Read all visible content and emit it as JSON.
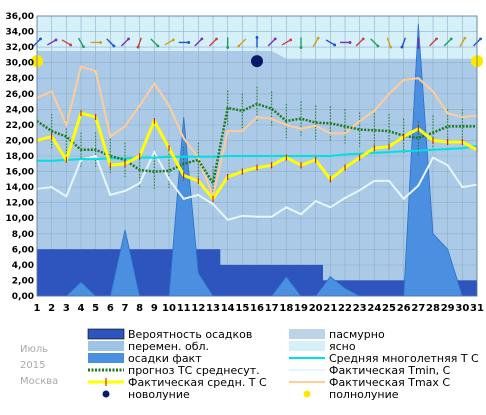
{
  "chart_data": {
    "type": "line",
    "x": [
      1,
      2,
      3,
      4,
      5,
      6,
      7,
      8,
      9,
      10,
      11,
      12,
      13,
      14,
      15,
      16,
      17,
      18,
      19,
      20,
      21,
      22,
      23,
      24,
      25,
      26,
      27,
      28,
      29,
      30,
      31
    ],
    "ylim": [
      0,
      36
    ],
    "yticks": [
      "0,00",
      "2,00",
      "4,00",
      "6,00",
      "8,00",
      "10,00",
      "12,00",
      "14,00",
      "16,00",
      "18,00",
      "20,00",
      "22,00",
      "24,00",
      "26,00",
      "28,00",
      "30,00",
      "32,00",
      "34,00",
      "36,00"
    ],
    "xticks": [
      "1",
      "2",
      "3",
      "4",
      "5",
      "6",
      "7",
      "8",
      "9",
      "10",
      "11",
      "12",
      "13",
      "14",
      "15",
      "16",
      "17",
      "18",
      "19",
      "20",
      "21",
      "22",
      "23",
      "24",
      "25",
      "26",
      "27",
      "28",
      "29",
      "30",
      "31"
    ],
    "colors": {
      "clear_sky": "#d6f0fa",
      "overcast": "#bcd3e8",
      "variable": "#9dc3e6",
      "precip_prob": "#2d55bd",
      "precip_fact": "#4a8fe0",
      "forecast": "#1a7a1a",
      "mean_norm": "#00e0e0",
      "fact_mean": "#ffff00",
      "tmin": "#e6f6ff",
      "tmax": "#ffcc99"
    },
    "precip_probability": [
      6,
      6,
      6,
      6,
      6,
      6,
      6,
      6,
      6,
      6,
      6,
      6,
      6,
      4,
      4,
      4,
      4,
      4,
      4,
      4,
      2,
      2,
      2,
      2,
      2,
      2,
      2,
      2,
      2,
      2,
      2
    ],
    "precip_fact": [
      0,
      0,
      0,
      1.8,
      0,
      0,
      8.5,
      0,
      0,
      0,
      23,
      3,
      0,
      0,
      0,
      0,
      0,
      2.5,
      0,
      0,
      2.5,
      1,
      0,
      0,
      0,
      0,
      35,
      8,
      6,
      0,
      0
    ],
    "forecast_mean": [
      22.5,
      21.2,
      20.5,
      18.8,
      18.8,
      18,
      17.5,
      16.2,
      16,
      16.1,
      17,
      17.5,
      14.5,
      24.2,
      23.8,
      24.7,
      24.1,
      22.5,
      22.8,
      22.3,
      22.2,
      21.8,
      21.4,
      21.3,
      21.2,
      20.6,
      20.3,
      21,
      21.8,
      21.8,
      21.8
    ],
    "mean_norm": [
      17.4,
      17.4,
      17.5,
      17.6,
      17.6,
      17.7,
      17.7,
      17.8,
      17.8,
      17.9,
      17.9,
      17.9,
      17.9,
      18,
      18,
      18,
      18,
      18,
      18,
      18,
      18,
      18.2,
      18.3,
      18.4,
      18.5,
      18.6,
      18.7,
      18.8,
      18.9,
      19,
      19.3
    ],
    "fact_mean": [
      20,
      20.5,
      17.5,
      23.5,
      23,
      16.8,
      17,
      18,
      22.5,
      19,
      15.5,
      14.8,
      12.5,
      15.3,
      16,
      16.5,
      16.8,
      17.8,
      16.8,
      17.5,
      15,
      16.5,
      17.8,
      19,
      19.2,
      20.5,
      21.5,
      20,
      19.8,
      19.8,
      18.8
    ],
    "fact_tmin": [
      13.8,
      14,
      12.8,
      17.5,
      18,
      13,
      13.5,
      14.5,
      18.5,
      15,
      12.5,
      13,
      11.8,
      9.8,
      10.3,
      10.2,
      10.2,
      11.4,
      10.5,
      12.2,
      11.4,
      12.6,
      13.6,
      14.8,
      14.8,
      12.5,
      14.2,
      17.8,
      16.8,
      14,
      14.3
    ],
    "fact_tmax": [
      25.5,
      26.3,
      22,
      29.5,
      28.9,
      20.5,
      21.8,
      24.5,
      27.3,
      24.5,
      20.3,
      17.8,
      12.8,
      21.2,
      21.2,
      23,
      22.8,
      22,
      21.5,
      21.9,
      20.9,
      20.9,
      22.5,
      23.8,
      26,
      27.8,
      28,
      26.3,
      23.5,
      23,
      23.2
    ],
    "overcast_level": [
      31.5,
      31.5,
      31.5,
      31.5,
      31.5,
      31.5,
      31.5,
      31.5,
      31.5,
      31.5,
      31.5,
      31.5,
      31.5,
      31.5,
      31.5,
      31.5,
      31.5,
      30.5,
      30.5,
      30.5,
      30.5,
      30.5,
      30.5,
      30.5,
      30.5,
      30.5,
      30.5,
      30.5,
      30.5,
      30.5,
      30.5
    ],
    "variable_level": [
      31.5,
      31.5,
      31.5,
      31.5,
      31.5,
      31.5,
      31.5,
      31.5,
      31.5,
      31.5,
      31.5,
      31.5,
      31.5,
      31.5,
      31.5,
      31.5,
      31.5,
      30.5,
      30.5,
      30.5,
      30.5,
      30.5,
      30.5,
      30.5,
      30.5,
      30.5,
      30.5,
      30.5,
      30.5,
      30.5,
      30.5
    ],
    "new_moon_days": [
      16
    ],
    "full_moon_days": [
      1,
      31
    ],
    "legend": [
      {
        "key": "precip_prob",
        "label": "Вероятность осадков",
        "swatch": "box"
      },
      {
        "key": "overcast",
        "label": "пасмурно",
        "swatch": "box"
      },
      {
        "key": "variable",
        "label": "перемен. обл.",
        "swatch": "box"
      },
      {
        "key": "clear_sky",
        "label": "ясно",
        "swatch": "box"
      },
      {
        "key": "precip_fact",
        "label": "осадки факт",
        "swatch": "box"
      },
      {
        "key": "mean_norm",
        "label": "Средняя многолетняя Т С",
        "swatch": "line"
      },
      {
        "key": "forecast",
        "label": "прогноз ТС среднесут.",
        "swatch": "dotted"
      },
      {
        "key": "tmin",
        "label": "Фактическая Tmin, С",
        "swatch": "line"
      },
      {
        "key": "fact_mean",
        "label": "Фактическая средн. Т С",
        "swatch": "marker-line"
      },
      {
        "key": "tmax",
        "label": "Фактическая Tmax С",
        "swatch": "line"
      },
      {
        "key": "new_moon",
        "label": "новолуние",
        "swatch": "dark-dot"
      },
      {
        "key": "full_moon",
        "label": "полнолуние",
        "swatch": "yellow-dot"
      }
    ],
    "side_labels": [
      "Июль",
      "2015",
      "Москва"
    ]
  }
}
